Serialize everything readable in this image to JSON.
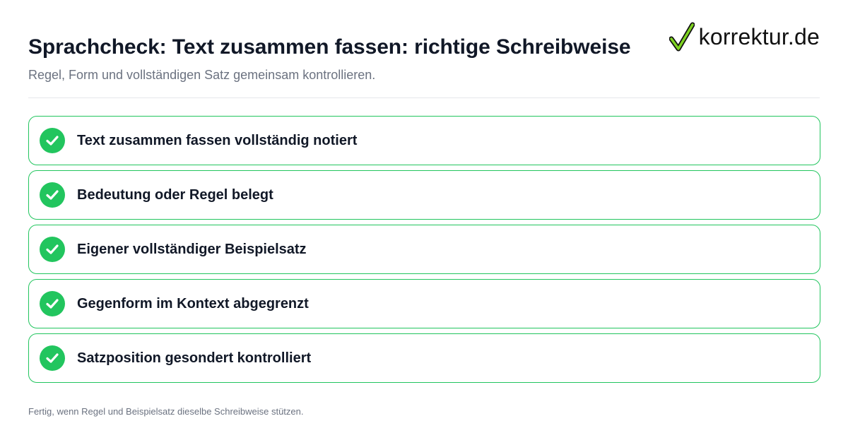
{
  "header": {
    "title": "Sprachcheck: Text zusammen fassen: richtige Schreibweise",
    "subtitle": "Regel, Form und vollständigen Satz gemeinsam kontrollieren."
  },
  "brand": {
    "name": "korrektur.de",
    "icon": "checkmark-logo-icon"
  },
  "checklist": {
    "items": [
      {
        "label": "Text zusammen fassen vollständig notiert",
        "checked": true
      },
      {
        "label": "Bedeutung oder Regel belegt",
        "checked": true
      },
      {
        "label": "Eigener vollständiger Beispielsatz",
        "checked": true
      },
      {
        "label": "Gegenform im Kontext abgegrenzt",
        "checked": true
      },
      {
        "label": "Satzposition gesondert kontrolliert",
        "checked": true
      }
    ]
  },
  "footer": {
    "note": "Fertig, wenn Regel und Beispielsatz dieselbe Schreibweise stützen."
  },
  "colors": {
    "accent_green": "#22c55e",
    "title_text": "#111827",
    "muted_text": "#6b7280",
    "divider": "#e5e7eb"
  }
}
